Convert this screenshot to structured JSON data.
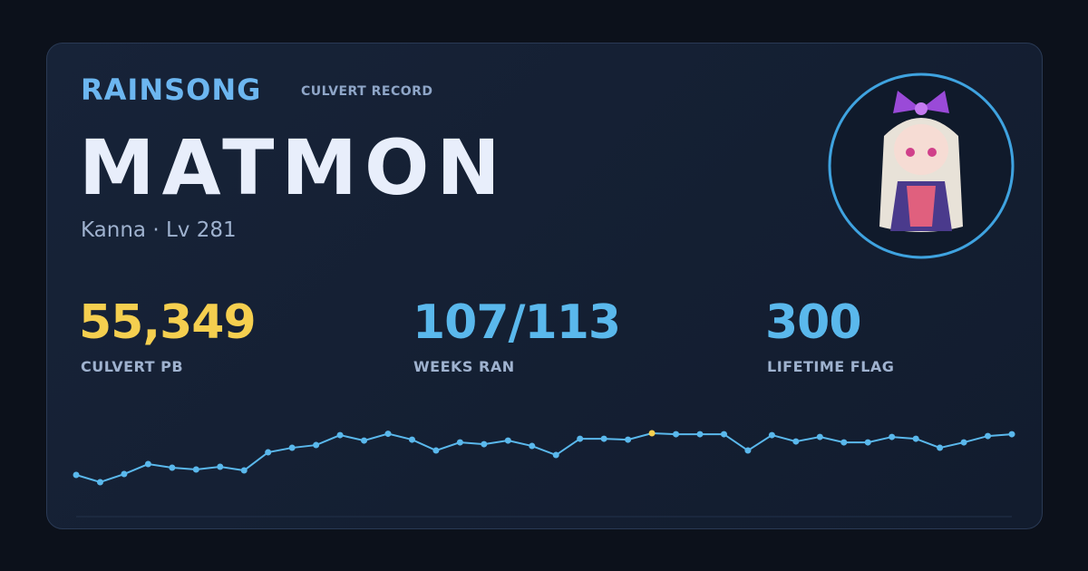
{
  "header": {
    "brand": "RAINSONG",
    "subtitle": "CULVERT RECORD",
    "name": "MATMON",
    "class_level": "Kanna · Lv 281"
  },
  "stats": [
    {
      "value": "55,349",
      "label": "CULVERT PB"
    },
    {
      "value": "107/113",
      "label": "WEEKS RAN"
    },
    {
      "value": "300",
      "label": "LIFETIME FLAG"
    }
  ],
  "chart_data": {
    "type": "line",
    "color": "#5ab8ec",
    "highlight_color": "#f5cf4f",
    "values": [
      27700,
      22900,
      28300,
      34900,
      32500,
      31300,
      33100,
      30700,
      42700,
      45700,
      47500,
      54100,
      50500,
      55000,
      51100,
      43900,
      49300,
      48100,
      50500,
      46900,
      40900,
      51700,
      51700,
      51100,
      55349,
      54700,
      54700,
      54700,
      43900,
      54100,
      49900,
      52900,
      49300,
      49300,
      52900,
      51700,
      45700,
      49300,
      53500,
      54700
    ]
  }
}
